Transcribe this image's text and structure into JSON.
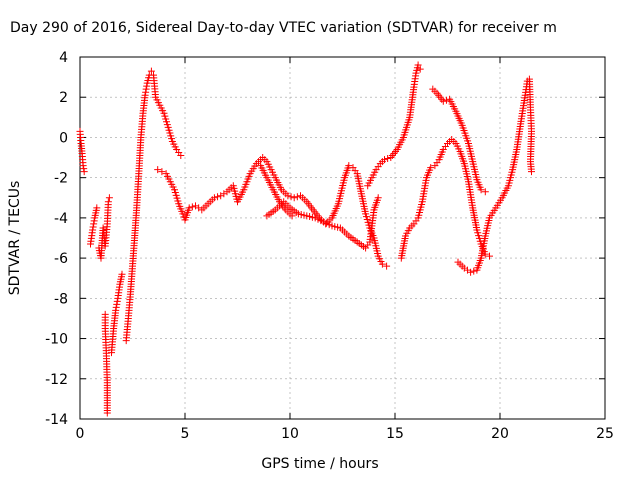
{
  "chart_data": {
    "type": "scatter",
    "title": "Day 290 of 2016, Sidereal Day-to-day VTEC variation (SDTVAR) for receiver m",
    "xlabel": "GPS time / hours",
    "ylabel": "SDTVAR / TECUs",
    "xlim": [
      0,
      25
    ],
    "ylim": [
      -14,
      4
    ],
    "xticks": [
      0,
      5,
      10,
      15,
      20,
      25
    ],
    "yticks": [
      -14,
      -12,
      -10,
      -8,
      -6,
      -4,
      -2,
      0,
      2,
      4
    ],
    "grid": true,
    "marker": "+",
    "marker_color": "#ff0000",
    "series": [
      {
        "points": [
          [
            0.0,
            0.3
          ],
          [
            0.05,
            -0.3
          ],
          [
            0.1,
            -0.8
          ],
          [
            0.15,
            -1.4
          ],
          [
            0.2,
            -1.7
          ],
          [
            0.5,
            -5.3
          ],
          [
            0.6,
            -4.6
          ],
          [
            0.7,
            -4.0
          ],
          [
            0.8,
            -3.5
          ],
          [
            0.9,
            -5.5
          ],
          [
            1.0,
            -6.0
          ],
          [
            1.1,
            -4.5
          ],
          [
            1.2,
            -5.4
          ],
          [
            1.3,
            -4.3
          ],
          [
            1.35,
            -3.2
          ],
          [
            1.4,
            -3.0
          ],
          [
            1.2,
            -8.8
          ],
          [
            1.2,
            -9.5
          ],
          [
            1.25,
            -10.6
          ],
          [
            1.3,
            -12.2
          ],
          [
            1.3,
            -13.7
          ],
          [
            1.5,
            -10.7
          ],
          [
            1.6,
            -9.5
          ],
          [
            1.7,
            -8.6
          ],
          [
            1.8,
            -8.0
          ],
          [
            1.9,
            -7.3
          ],
          [
            2.0,
            -6.8
          ],
          [
            2.2,
            -10.1
          ],
          [
            2.3,
            -9.0
          ],
          [
            2.4,
            -7.8
          ],
          [
            2.5,
            -6.4
          ],
          [
            2.6,
            -5.0
          ],
          [
            2.7,
            -3.5
          ],
          [
            2.8,
            -1.8
          ],
          [
            2.9,
            0.0
          ],
          [
            3.0,
            1.2
          ],
          [
            3.1,
            2.1
          ],
          [
            3.2,
            2.7
          ],
          [
            3.3,
            3.1
          ],
          [
            3.4,
            3.3
          ],
          [
            3.5,
            3.1
          ],
          [
            3.6,
            2.0
          ],
          [
            3.8,
            1.6
          ],
          [
            4.0,
            1.2
          ],
          [
            4.2,
            0.5
          ],
          [
            4.4,
            -0.2
          ],
          [
            4.6,
            -0.6
          ],
          [
            4.8,
            -0.9
          ],
          [
            3.7,
            -1.6
          ],
          [
            3.9,
            -1.7
          ],
          [
            4.1,
            -1.8
          ],
          [
            4.3,
            -2.2
          ],
          [
            4.5,
            -2.6
          ],
          [
            4.7,
            -3.3
          ],
          [
            4.9,
            -3.8
          ],
          [
            5.0,
            -4.1
          ],
          [
            5.2,
            -3.5
          ],
          [
            5.5,
            -3.4
          ],
          [
            5.8,
            -3.6
          ],
          [
            6.1,
            -3.3
          ],
          [
            6.4,
            -3.0
          ],
          [
            6.7,
            -2.9
          ],
          [
            7.0,
            -2.7
          ],
          [
            7.3,
            -2.4
          ],
          [
            7.5,
            -3.2
          ],
          [
            7.8,
            -2.6
          ],
          [
            8.1,
            -1.8
          ],
          [
            8.4,
            -1.3
          ],
          [
            8.7,
            -1.0
          ],
          [
            8.9,
            -1.2
          ],
          [
            9.1,
            -1.6
          ],
          [
            9.3,
            -2.0
          ],
          [
            9.6,
            -2.6
          ],
          [
            9.9,
            -2.9
          ],
          [
            10.2,
            -3.0
          ],
          [
            10.5,
            -2.9
          ],
          [
            10.8,
            -3.2
          ],
          [
            11.1,
            -3.6
          ],
          [
            11.4,
            -4.0
          ],
          [
            11.7,
            -4.3
          ],
          [
            12.0,
            -4.0
          ],
          [
            12.3,
            -3.3
          ],
          [
            12.6,
            -2.0
          ],
          [
            12.8,
            -1.4
          ],
          [
            13.0,
            -1.5
          ],
          [
            13.2,
            -1.8
          ],
          [
            13.4,
            -2.8
          ],
          [
            13.6,
            -3.8
          ],
          [
            13.8,
            -4.5
          ],
          [
            14.0,
            -5.0
          ],
          [
            14.2,
            -5.9
          ],
          [
            14.4,
            -6.3
          ],
          [
            14.6,
            -6.4
          ],
          [
            8.9,
            -3.9
          ],
          [
            9.3,
            -3.6
          ],
          [
            9.7,
            -3.2
          ],
          [
            10.0,
            -3.5
          ],
          [
            10.4,
            -3.8
          ],
          [
            10.8,
            -3.9
          ],
          [
            11.2,
            -4.0
          ],
          [
            11.6,
            -4.2
          ],
          [
            12.0,
            -4.4
          ],
          [
            12.4,
            -4.5
          ],
          [
            12.8,
            -4.9
          ],
          [
            13.2,
            -5.2
          ],
          [
            13.6,
            -5.5
          ],
          [
            13.8,
            -5.2
          ],
          [
            14.0,
            -3.6
          ],
          [
            14.2,
            -3.0
          ],
          [
            8.6,
            -1.4
          ],
          [
            8.9,
            -2.0
          ],
          [
            9.2,
            -2.6
          ],
          [
            9.5,
            -3.2
          ],
          [
            9.8,
            -3.6
          ],
          [
            10.1,
            -3.9
          ],
          [
            13.7,
            -2.4
          ],
          [
            13.9,
            -2.0
          ],
          [
            14.1,
            -1.6
          ],
          [
            14.3,
            -1.3
          ],
          [
            14.5,
            -1.1
          ],
          [
            14.8,
            -1.0
          ],
          [
            15.1,
            -0.6
          ],
          [
            15.4,
            0.0
          ],
          [
            15.7,
            1.0
          ],
          [
            15.9,
            2.5
          ],
          [
            16.0,
            3.2
          ],
          [
            16.1,
            3.6
          ],
          [
            16.2,
            3.4
          ],
          [
            15.3,
            -6.0
          ],
          [
            15.5,
            -4.9
          ],
          [
            15.7,
            -4.5
          ],
          [
            15.9,
            -4.3
          ],
          [
            16.1,
            -4.0
          ],
          [
            16.3,
            -3.2
          ],
          [
            16.5,
            -2.0
          ],
          [
            16.7,
            -1.5
          ],
          [
            16.9,
            -1.4
          ],
          [
            17.1,
            -1.1
          ],
          [
            17.3,
            -0.6
          ],
          [
            17.5,
            -0.3
          ],
          [
            17.7,
            -0.1
          ],
          [
            17.9,
            -0.3
          ],
          [
            18.1,
            -0.7
          ],
          [
            18.3,
            -1.3
          ],
          [
            18.5,
            -2.2
          ],
          [
            18.7,
            -3.5
          ],
          [
            18.9,
            -4.6
          ],
          [
            19.1,
            -5.3
          ],
          [
            19.3,
            -5.8
          ],
          [
            19.5,
            -5.9
          ],
          [
            16.8,
            2.4
          ],
          [
            17.0,
            2.2
          ],
          [
            17.3,
            1.8
          ],
          [
            17.6,
            1.9
          ],
          [
            17.9,
            1.3
          ],
          [
            18.2,
            0.6
          ],
          [
            18.5,
            -0.3
          ],
          [
            18.7,
            -1.2
          ],
          [
            18.9,
            -2.1
          ],
          [
            19.1,
            -2.6
          ],
          [
            19.3,
            -2.7
          ],
          [
            18.0,
            -6.2
          ],
          [
            18.3,
            -6.5
          ],
          [
            18.6,
            -6.7
          ],
          [
            18.9,
            -6.6
          ],
          [
            19.1,
            -6.0
          ],
          [
            19.3,
            -4.9
          ],
          [
            19.5,
            -4.0
          ],
          [
            19.8,
            -3.5
          ],
          [
            20.1,
            -3.0
          ],
          [
            20.4,
            -2.4
          ],
          [
            20.6,
            -1.6
          ],
          [
            20.8,
            -0.6
          ],
          [
            21.0,
            0.8
          ],
          [
            21.2,
            2.1
          ],
          [
            21.3,
            2.8
          ],
          [
            21.4,
            2.9
          ],
          [
            21.45,
            1.5
          ],
          [
            21.5,
            0.3
          ],
          [
            21.45,
            -1.2
          ],
          [
            21.5,
            -1.7
          ]
        ]
      }
    ]
  }
}
